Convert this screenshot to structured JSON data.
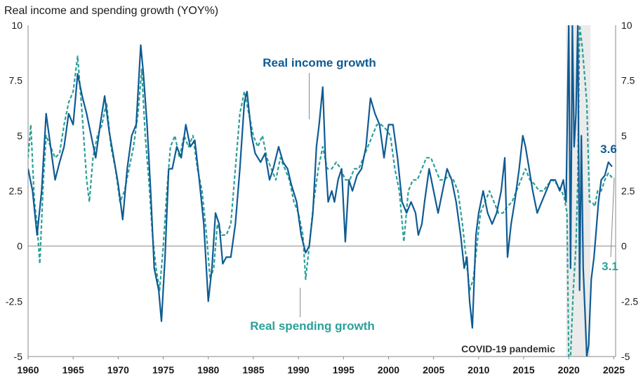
{
  "chart_data": {
    "type": "line",
    "title": "Real income and spending growth (YOY%)",
    "xlim": [
      1960,
      2025.2
    ],
    "ylim": [
      -5,
      10
    ],
    "x_ticks": [
      "1960",
      "1965",
      "1970",
      "1975",
      "1980",
      "1985",
      "1990",
      "1995",
      "2000",
      "2005",
      "2010",
      "2015",
      "2020",
      "2025"
    ],
    "y_ticks_left": [
      "10",
      "7.5",
      "5",
      "2.5",
      "0",
      "-2.5",
      "-5"
    ],
    "y_ticks_right": [
      "10",
      "7.5",
      "5",
      "2.5",
      "0",
      "-2.5",
      "-5"
    ],
    "grid": false,
    "zero_line": true,
    "shaded_region": {
      "label": "COVID-19 pandemic",
      "x_start": 2019.7,
      "x_end": 2022.4
    },
    "series": [
      {
        "name": "Real income growth",
        "style": "solid",
        "color": "#0f5b93",
        "end_label": "3.6",
        "points": [
          [
            1960.0,
            3.5
          ],
          [
            1960.5,
            2.5
          ],
          [
            1961.0,
            0.5
          ],
          [
            1961.5,
            2.5
          ],
          [
            1962.0,
            6.0
          ],
          [
            1962.5,
            4.5
          ],
          [
            1963.0,
            3.0
          ],
          [
            1963.5,
            3.8
          ],
          [
            1964.0,
            4.5
          ],
          [
            1964.5,
            6.0
          ],
          [
            1965.0,
            5.5
          ],
          [
            1965.5,
            7.8
          ],
          [
            1966.0,
            6.8
          ],
          [
            1966.5,
            6.0
          ],
          [
            1967.0,
            5.0
          ],
          [
            1967.5,
            4.0
          ],
          [
            1968.0,
            5.5
          ],
          [
            1968.5,
            6.8
          ],
          [
            1969.0,
            5.2
          ],
          [
            1969.5,
            4.0
          ],
          [
            1970.0,
            2.8
          ],
          [
            1970.5,
            1.2
          ],
          [
            1971.0,
            3.5
          ],
          [
            1971.5,
            5.0
          ],
          [
            1972.0,
            5.5
          ],
          [
            1972.5,
            9.1
          ],
          [
            1972.8,
            7.8
          ],
          [
            1973.2,
            5.5
          ],
          [
            1973.6,
            2.5
          ],
          [
            1974.0,
            -1.0
          ],
          [
            1974.5,
            -2.0
          ],
          [
            1974.8,
            -3.4
          ],
          [
            1975.2,
            -0.5
          ],
          [
            1975.6,
            3.5
          ],
          [
            1976.0,
            3.5
          ],
          [
            1976.5,
            4.5
          ],
          [
            1977.0,
            4.0
          ],
          [
            1977.5,
            5.5
          ],
          [
            1978.0,
            4.5
          ],
          [
            1978.5,
            4.8
          ],
          [
            1979.0,
            3.0
          ],
          [
            1979.5,
            1.0
          ],
          [
            1980.0,
            -2.5
          ],
          [
            1980.4,
            -1.0
          ],
          [
            1980.8,
            1.5
          ],
          [
            1981.2,
            1.0
          ],
          [
            1981.6,
            -0.8
          ],
          [
            1982.0,
            -0.5
          ],
          [
            1982.5,
            -0.5
          ],
          [
            1983.0,
            1.0
          ],
          [
            1983.5,
            3.5
          ],
          [
            1984.0,
            6.5
          ],
          [
            1984.3,
            7.0
          ],
          [
            1984.8,
            5.0
          ],
          [
            1985.2,
            4.2
          ],
          [
            1985.8,
            3.8
          ],
          [
            1986.3,
            4.2
          ],
          [
            1986.8,
            3.0
          ],
          [
            1987.2,
            3.5
          ],
          [
            1987.8,
            4.5
          ],
          [
            1988.3,
            3.8
          ],
          [
            1988.8,
            3.5
          ],
          [
            1989.2,
            2.8
          ],
          [
            1989.8,
            2.0
          ],
          [
            1990.3,
            0.5
          ],
          [
            1990.8,
            -0.3
          ],
          [
            1991.2,
            0.0
          ],
          [
            1991.6,
            1.5
          ],
          [
            1992.0,
            4.5
          ],
          [
            1992.3,
            5.5
          ],
          [
            1992.7,
            7.2
          ],
          [
            1993.0,
            4.0
          ],
          [
            1993.3,
            2.0
          ],
          [
            1993.7,
            2.5
          ],
          [
            1994.0,
            2.0
          ],
          [
            1994.4,
            3.0
          ],
          [
            1994.8,
            3.5
          ],
          [
            1995.2,
            0.2
          ],
          [
            1995.6,
            3.0
          ],
          [
            1996.0,
            2.5
          ],
          [
            1996.5,
            3.2
          ],
          [
            1997.0,
            3.5
          ],
          [
            1997.5,
            4.5
          ],
          [
            1998.0,
            6.7
          ],
          [
            1998.5,
            6.0
          ],
          [
            1999.0,
            5.5
          ],
          [
            1999.5,
            4.0
          ],
          [
            2000.0,
            5.5
          ],
          [
            2000.5,
            5.5
          ],
          [
            2001.0,
            4.0
          ],
          [
            2001.5,
            2.0
          ],
          [
            2002.0,
            1.5
          ],
          [
            2002.5,
            2.0
          ],
          [
            2003.0,
            1.5
          ],
          [
            2003.3,
            0.5
          ],
          [
            2003.7,
            1.0
          ],
          [
            2004.0,
            2.0
          ],
          [
            2004.5,
            3.5
          ],
          [
            2005.0,
            2.5
          ],
          [
            2005.5,
            1.5
          ],
          [
            2006.0,
            2.5
          ],
          [
            2006.5,
            3.5
          ],
          [
            2007.0,
            3.0
          ],
          [
            2007.5,
            2.0
          ],
          [
            2008.0,
            0.5
          ],
          [
            2008.4,
            -1.0
          ],
          [
            2008.7,
            -0.5
          ],
          [
            2009.0,
            -2.5
          ],
          [
            2009.3,
            -3.7
          ],
          [
            2009.7,
            0.5
          ],
          [
            2010.0,
            1.5
          ],
          [
            2010.5,
            2.5
          ],
          [
            2011.0,
            1.5
          ],
          [
            2011.5,
            1.0
          ],
          [
            2012.0,
            1.5
          ],
          [
            2012.5,
            2.5
          ],
          [
            2012.9,
            4.0
          ],
          [
            2013.2,
            -0.5
          ],
          [
            2013.6,
            1.0
          ],
          [
            2014.0,
            2.0
          ],
          [
            2014.5,
            3.5
          ],
          [
            2014.9,
            5.0
          ],
          [
            2015.2,
            4.5
          ],
          [
            2015.6,
            3.5
          ],
          [
            2016.0,
            2.5
          ],
          [
            2016.5,
            1.5
          ],
          [
            2017.0,
            2.0
          ],
          [
            2017.5,
            2.5
          ],
          [
            2018.0,
            3.0
          ],
          [
            2018.5,
            3.0
          ],
          [
            2019.0,
            2.5
          ],
          [
            2019.4,
            3.0
          ],
          [
            2019.7,
            2.0
          ],
          [
            2020.0,
            10.0
          ],
          [
            2020.2,
            -1.0
          ],
          [
            2020.4,
            10.0
          ],
          [
            2020.6,
            4.5
          ],
          [
            2020.8,
            6.0
          ],
          [
            2021.0,
            10.0
          ],
          [
            2021.2,
            -2.0
          ],
          [
            2021.4,
            5.0
          ],
          [
            2021.6,
            -1.0
          ],
          [
            2021.8,
            -3.0
          ],
          [
            2022.0,
            -5.0
          ],
          [
            2022.2,
            -4.5
          ],
          [
            2022.5,
            -1.5
          ],
          [
            2022.8,
            -0.5
          ],
          [
            2023.0,
            0.5
          ],
          [
            2023.3,
            2.0
          ],
          [
            2023.6,
            3.0
          ],
          [
            2024.0,
            3.2
          ],
          [
            2024.4,
            3.8
          ],
          [
            2024.8,
            3.6
          ]
        ]
      },
      {
        "name": "Real spending growth",
        "style": "dashed",
        "color": "#2aa198",
        "end_label": "3.1",
        "points": [
          [
            1960.0,
            4.0
          ],
          [
            1960.3,
            5.5
          ],
          [
            1960.7,
            2.0
          ],
          [
            1961.0,
            1.0
          ],
          [
            1961.3,
            -0.8
          ],
          [
            1961.7,
            3.0
          ],
          [
            1962.0,
            5.0
          ],
          [
            1962.5,
            4.5
          ],
          [
            1963.0,
            4.0
          ],
          [
            1963.5,
            4.2
          ],
          [
            1964.0,
            5.5
          ],
          [
            1964.5,
            6.5
          ],
          [
            1965.0,
            7.0
          ],
          [
            1965.5,
            8.6
          ],
          [
            1966.0,
            6.0
          ],
          [
            1966.5,
            3.0
          ],
          [
            1966.8,
            2.0
          ],
          [
            1967.2,
            4.0
          ],
          [
            1967.7,
            5.0
          ],
          [
            1968.2,
            5.5
          ],
          [
            1968.7,
            6.5
          ],
          [
            1969.2,
            4.5
          ],
          [
            1969.7,
            3.5
          ],
          [
            1970.2,
            2.0
          ],
          [
            1970.7,
            2.5
          ],
          [
            1971.2,
            3.5
          ],
          [
            1971.7,
            4.5
          ],
          [
            1972.2,
            6.0
          ],
          [
            1972.6,
            8.0
          ],
          [
            1973.0,
            5.0
          ],
          [
            1973.4,
            3.0
          ],
          [
            1973.8,
            0.5
          ],
          [
            1974.2,
            -1.0
          ],
          [
            1974.6,
            -2.0
          ],
          [
            1975.0,
            0.0
          ],
          [
            1975.4,
            2.5
          ],
          [
            1975.8,
            4.5
          ],
          [
            1976.3,
            5.0
          ],
          [
            1976.8,
            4.0
          ],
          [
            1977.3,
            5.0
          ],
          [
            1977.8,
            4.5
          ],
          [
            1978.3,
            5.0
          ],
          [
            1978.8,
            3.5
          ],
          [
            1979.3,
            2.5
          ],
          [
            1979.8,
            0.5
          ],
          [
            1980.2,
            -1.5
          ],
          [
            1980.6,
            -1.0
          ],
          [
            1981.0,
            1.0
          ],
          [
            1981.5,
            0.5
          ],
          [
            1982.0,
            0.5
          ],
          [
            1982.5,
            1.0
          ],
          [
            1983.0,
            3.5
          ],
          [
            1983.5,
            6.0
          ],
          [
            1984.0,
            7.0
          ],
          [
            1984.5,
            6.0
          ],
          [
            1985.0,
            5.0
          ],
          [
            1985.5,
            4.5
          ],
          [
            1986.0,
            5.0
          ],
          [
            1986.5,
            4.0
          ],
          [
            1987.0,
            3.5
          ],
          [
            1987.5,
            3.0
          ],
          [
            1988.0,
            4.0
          ],
          [
            1988.5,
            3.5
          ],
          [
            1989.0,
            3.0
          ],
          [
            1989.5,
            2.0
          ],
          [
            1990.0,
            1.5
          ],
          [
            1990.5,
            0.5
          ],
          [
            1990.8,
            -1.5
          ],
          [
            1991.2,
            0.0
          ],
          [
            1991.7,
            2.0
          ],
          [
            1992.2,
            3.5
          ],
          [
            1992.7,
            4.5
          ],
          [
            1993.2,
            3.5
          ],
          [
            1993.7,
            3.5
          ],
          [
            1994.2,
            3.8
          ],
          [
            1994.7,
            3.5
          ],
          [
            1995.2,
            3.0
          ],
          [
            1995.7,
            3.0
          ],
          [
            1996.2,
            3.5
          ],
          [
            1996.7,
            3.5
          ],
          [
            1997.2,
            4.0
          ],
          [
            1997.7,
            4.5
          ],
          [
            1998.2,
            5.0
          ],
          [
            1998.7,
            5.5
          ],
          [
            1999.2,
            5.5
          ],
          [
            1999.7,
            5.3
          ],
          [
            2000.2,
            5.0
          ],
          [
            2000.7,
            3.5
          ],
          [
            2001.2,
            2.5
          ],
          [
            2001.7,
            0.2
          ],
          [
            2002.2,
            2.5
          ],
          [
            2002.7,
            3.0
          ],
          [
            2003.2,
            3.0
          ],
          [
            2003.7,
            3.5
          ],
          [
            2004.2,
            4.0
          ],
          [
            2004.7,
            4.0
          ],
          [
            2005.2,
            3.5
          ],
          [
            2005.7,
            3.0
          ],
          [
            2006.2,
            3.0
          ],
          [
            2006.7,
            3.2
          ],
          [
            2007.2,
            3.0
          ],
          [
            2007.7,
            2.5
          ],
          [
            2008.2,
            1.0
          ],
          [
            2008.6,
            -0.5
          ],
          [
            2009.0,
            -2.0
          ],
          [
            2009.4,
            -1.5
          ],
          [
            2009.8,
            0.0
          ],
          [
            2010.2,
            1.5
          ],
          [
            2010.7,
            2.0
          ],
          [
            2011.2,
            2.5
          ],
          [
            2011.7,
            2.0
          ],
          [
            2012.2,
            1.5
          ],
          [
            2012.7,
            1.5
          ],
          [
            2013.2,
            1.8
          ],
          [
            2013.7,
            2.0
          ],
          [
            2014.2,
            2.5
          ],
          [
            2014.7,
            3.0
          ],
          [
            2015.2,
            3.5
          ],
          [
            2015.7,
            3.0
          ],
          [
            2016.2,
            2.8
          ],
          [
            2016.7,
            2.5
          ],
          [
            2017.2,
            2.5
          ],
          [
            2017.7,
            2.8
          ],
          [
            2018.2,
            3.0
          ],
          [
            2018.7,
            2.8
          ],
          [
            2019.2,
            2.5
          ],
          [
            2019.5,
            2.2
          ],
          [
            2019.8,
            1.5
          ],
          [
            2020.0,
            -5.0
          ],
          [
            2020.2,
            -8.0
          ],
          [
            2020.5,
            -2.0
          ],
          [
            2020.8,
            0.0
          ],
          [
            2021.0,
            3.0
          ],
          [
            2021.2,
            10.0
          ],
          [
            2021.5,
            9.0
          ],
          [
            2021.8,
            7.5
          ],
          [
            2022.0,
            6.5
          ],
          [
            2022.3,
            2.0
          ],
          [
            2022.6,
            2.0
          ],
          [
            2022.9,
            1.8
          ],
          [
            2023.2,
            2.5
          ],
          [
            2023.6,
            2.5
          ],
          [
            2024.0,
            3.0
          ],
          [
            2024.4,
            3.3
          ],
          [
            2024.8,
            3.1
          ]
        ]
      }
    ]
  },
  "annotations": {
    "income_label": "Real income growth",
    "spending_label": "Real spending growth",
    "covid_label": "COVID-19 pandemic"
  },
  "colors": {
    "income": "#0f5b93",
    "spending": "#2aa198",
    "shade": "#ebebeb",
    "axis": "#8a8a8a"
  }
}
